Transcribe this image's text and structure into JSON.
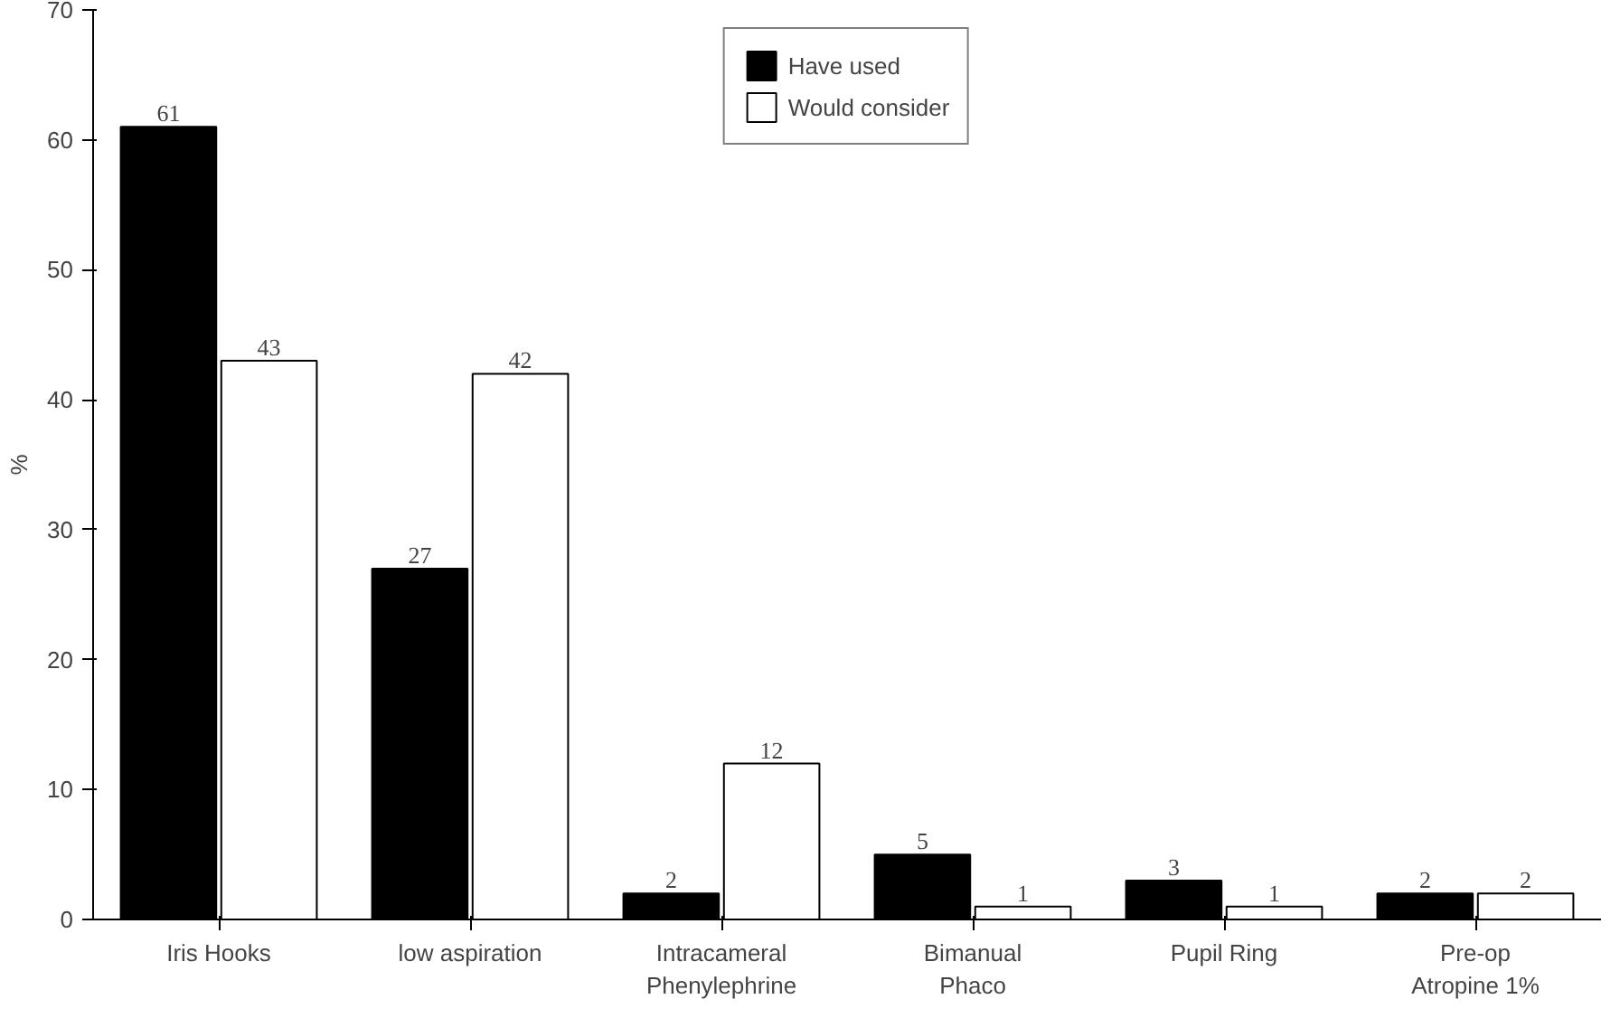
{
  "chart_data": {
    "type": "bar",
    "ylabel": "%",
    "categories": [
      "Iris Hooks",
      "low aspiration",
      "Intracameral\nPhenylephrine",
      "Bimanual\nPhaco",
      "Pupil Ring",
      "Pre-op\nAtropine 1%"
    ],
    "series": [
      {
        "name": "Have used",
        "color": "#000000",
        "values": [
          61,
          27,
          2,
          5,
          3,
          2
        ]
      },
      {
        "name": "Would consider",
        "color": "#ffffff",
        "values": [
          43,
          42,
          12,
          1,
          1,
          2
        ]
      }
    ],
    "ylim": [
      0,
      70
    ],
    "yticks": [
      0,
      10,
      20,
      30,
      40,
      50,
      60,
      70
    ],
    "grid": false,
    "legend": "top",
    "data_labels": true
  }
}
